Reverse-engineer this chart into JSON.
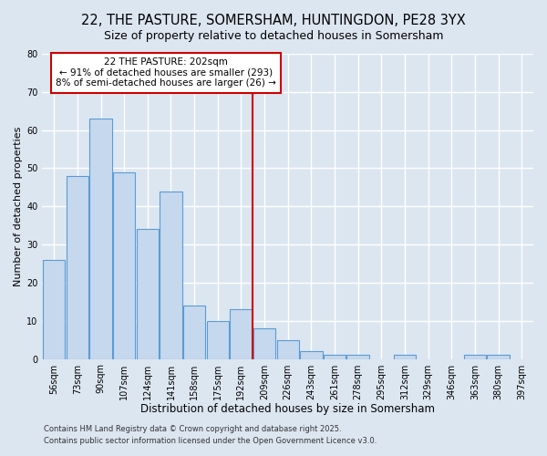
{
  "title": "22, THE PASTURE, SOMERSHAM, HUNTINGDON, PE28 3YX",
  "subtitle": "Size of property relative to detached houses in Somersham",
  "xlabel": "Distribution of detached houses by size in Somersham",
  "ylabel": "Number of detached properties",
  "bar_labels": [
    "56sqm",
    "73sqm",
    "90sqm",
    "107sqm",
    "124sqm",
    "141sqm",
    "158sqm",
    "175sqm",
    "192sqm",
    "209sqm",
    "226sqm",
    "243sqm",
    "261sqm",
    "278sqm",
    "295sqm",
    "312sqm",
    "329sqm",
    "346sqm",
    "363sqm",
    "380sqm",
    "397sqm"
  ],
  "bar_values": [
    26,
    48,
    63,
    49,
    34,
    44,
    14,
    10,
    13,
    8,
    5,
    2,
    1,
    1,
    0,
    1,
    0,
    0,
    1,
    1,
    0
  ],
  "bar_color": "#c5d8ed",
  "bar_edge_color": "#5b9bd5",
  "background_color": "#dce6f1",
  "plot_bg_color": "#dce6f1",
  "grid_color": "#ffffff",
  "vline_color": "#cc0000",
  "annotation_title": "22 THE PASTURE: 202sqm",
  "annotation_line1": "← 91% of detached houses are smaller (293)",
  "annotation_line2": "8% of semi-detached houses are larger (26) →",
  "annotation_box_color": "#ffffff",
  "annotation_box_edge": "#cc0000",
  "ylim": [
    0,
    80
  ],
  "yticks": [
    0,
    10,
    20,
    30,
    40,
    50,
    60,
    70,
    80
  ],
  "vline_pos": 8.5,
  "footer1": "Contains HM Land Registry data © Crown copyright and database right 2025.",
  "footer2": "Contains public sector information licensed under the Open Government Licence v3.0.",
  "title_fontsize": 10.5,
  "subtitle_fontsize": 9,
  "xlabel_fontsize": 8.5,
  "ylabel_fontsize": 8,
  "tick_fontsize": 7,
  "annotation_fontsize": 7.5,
  "footer_fontsize": 6
}
